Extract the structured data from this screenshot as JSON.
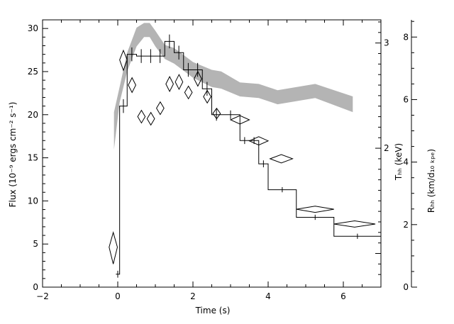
{
  "chart_data": {
    "type": "line",
    "xlabel": "Time (s)",
    "ylabel_left": "Flux (10⁻⁹ ergs cm⁻² s⁻¹)",
    "ylabel_right_inner": "Tₕₕ (keV)",
    "ylabel_right_outer": "Rₕₕ (km/d₁₀ ₖₚₑ)",
    "xlim": [
      -2,
      7
    ],
    "ylim_flux": [
      0,
      31
    ],
    "x_ticks": [
      "−2",
      "0",
      "2",
      "4",
      "6"
    ],
    "y_ticks_flux": [
      "0",
      "5",
      "10",
      "15",
      "20",
      "25",
      "30"
    ],
    "kT_ticks": [
      "2",
      "3"
    ],
    "R_ticks": [
      "0",
      "2",
      "4",
      "6",
      "8"
    ],
    "kT_scale": {
      "kT_at_axis_bottom": 0.68,
      "kT_at_axis_top": 3.22
    },
    "R_scale": {
      "R_at_axis_bottom": 0.0,
      "R_at_axis_top": 8.55
    },
    "series": [
      {
        "style": "histogram",
        "bins": [
          {
            "x0": -0.05,
            "x1": 0.05,
            "y": 1.5,
            "err": 0.4
          },
          {
            "x0": 0.05,
            "x1": 0.25,
            "y": 21.0,
            "err": 0.8
          },
          {
            "x0": 0.25,
            "x1": 0.5,
            "y": 27.0,
            "err": 0.8
          },
          {
            "x0": 0.5,
            "x1": 0.75,
            "y": 26.8,
            "err": 0.8
          },
          {
            "x0": 0.75,
            "x1": 1.0,
            "y": 26.8,
            "err": 0.8
          },
          {
            "x0": 1.0,
            "x1": 1.25,
            "y": 26.8,
            "err": 0.8
          },
          {
            "x0": 1.25,
            "x1": 1.5,
            "y": 28.5,
            "err": 0.8
          },
          {
            "x0": 1.5,
            "x1": 1.75,
            "y": 27.2,
            "err": 0.8
          },
          {
            "x0": 1.75,
            "x1": 2.0,
            "y": 25.2,
            "err": 0.8
          },
          {
            "x0": 2.0,
            "x1": 2.25,
            "y": 25.2,
            "err": 0.8
          },
          {
            "x0": 2.25,
            "x1": 2.5,
            "y": 23.0,
            "err": 0.8
          },
          {
            "x0": 2.5,
            "x1": 2.75,
            "y": 20.0,
            "err": 0.7
          },
          {
            "x0": 2.75,
            "x1": 3.25,
            "y": 20.0,
            "err": 0.5
          },
          {
            "x0": 3.25,
            "x1": 3.5,
            "y": 17.0,
            "err": 0.4
          },
          {
            "x0": 3.5,
            "x1": 3.75,
            "y": 17.0,
            "err": 0.4
          },
          {
            "x0": 3.75,
            "x1": 4.0,
            "y": 14.3,
            "err": 0.4
          },
          {
            "x0": 4.0,
            "x1": 4.75,
            "y": 11.3,
            "err": 0.3
          },
          {
            "x0": 4.75,
            "x1": 5.75,
            "y": 8.1,
            "err": 0.3
          },
          {
            "x0": 5.75,
            "x1": 7.0,
            "y": 5.9,
            "err": 0.3
          }
        ]
      },
      {
        "style": "diamond",
        "points": [
          {
            "t": -0.12,
            "t_lo": -0.23,
            "t_hi": -0.01,
            "kT": 1.06,
            "kT_lo": 0.9,
            "kT_hi": 1.2
          },
          {
            "t": 0.15,
            "t_lo": 0.05,
            "t_hi": 0.25,
            "kT": 2.84,
            "kT_lo": 2.74,
            "kT_hi": 2.93
          },
          {
            "t": 0.38,
            "t_lo": 0.28,
            "t_hi": 0.48,
            "kT": 2.6,
            "kT_lo": 2.53,
            "kT_hi": 2.67
          },
          {
            "t": 0.63,
            "t_lo": 0.53,
            "t_hi": 0.73,
            "kT": 2.3,
            "kT_lo": 2.24,
            "kT_hi": 2.36
          },
          {
            "t": 0.88,
            "t_lo": 0.78,
            "t_hi": 0.98,
            "kT": 2.28,
            "kT_lo": 2.22,
            "kT_hi": 2.34
          },
          {
            "t": 1.13,
            "t_lo": 1.03,
            "t_hi": 1.23,
            "kT": 2.38,
            "kT_lo": 2.32,
            "kT_hi": 2.44
          },
          {
            "t": 1.38,
            "t_lo": 1.28,
            "t_hi": 1.48,
            "kT": 2.61,
            "kT_lo": 2.54,
            "kT_hi": 2.68
          },
          {
            "t": 1.63,
            "t_lo": 1.53,
            "t_hi": 1.73,
            "kT": 2.63,
            "kT_lo": 2.56,
            "kT_hi": 2.7
          },
          {
            "t": 1.88,
            "t_lo": 1.78,
            "t_hi": 1.98,
            "kT": 2.53,
            "kT_lo": 2.47,
            "kT_hi": 2.59
          },
          {
            "t": 2.13,
            "t_lo": 2.03,
            "t_hi": 2.23,
            "kT": 2.66,
            "kT_lo": 2.59,
            "kT_hi": 2.73
          },
          {
            "t": 2.38,
            "t_lo": 2.28,
            "t_hi": 2.48,
            "kT": 2.49,
            "kT_lo": 2.43,
            "kT_hi": 2.55
          },
          {
            "t": 2.63,
            "t_lo": 2.53,
            "t_hi": 2.73,
            "kT": 2.33,
            "kT_lo": 2.28,
            "kT_hi": 2.38
          },
          {
            "t": 3.25,
            "t_lo": 3.0,
            "t_hi": 3.5,
            "kT": 2.27,
            "kT_lo": 2.23,
            "kT_hi": 2.31
          },
          {
            "t": 3.75,
            "t_lo": 3.5,
            "t_hi": 4.0,
            "kT": 2.07,
            "kT_lo": 2.03,
            "kT_hi": 2.11
          },
          {
            "t": 4.35,
            "t_lo": 4.05,
            "t_hi": 4.65,
            "kT": 1.9,
            "kT_lo": 1.86,
            "kT_hi": 1.94
          },
          {
            "t": 5.25,
            "t_lo": 4.75,
            "t_hi": 5.75,
            "kT": 1.42,
            "kT_lo": 1.39,
            "kT_hi": 1.45
          },
          {
            "t": 6.3,
            "t_lo": 5.75,
            "t_hi": 6.85,
            "kT": 1.28,
            "kT_lo": 1.25,
            "kT_hi": 1.31
          }
        ]
      },
      {
        "style": "band",
        "color": "#b4b4b4",
        "t": [
          -0.1,
          0.05,
          0.25,
          0.5,
          0.7,
          0.85,
          1.0,
          1.25,
          1.5,
          2.0,
          2.5,
          2.75,
          3.25,
          3.75,
          4.25,
          5.25,
          6.25
        ],
        "R_lo": [
          4.4,
          5.9,
          6.9,
          7.7,
          8.0,
          8.0,
          7.7,
          7.3,
          7.15,
          6.7,
          6.4,
          6.35,
          6.1,
          6.05,
          5.85,
          6.05,
          5.6
        ],
        "R_hi": [
          5.6,
          6.4,
          7.5,
          8.3,
          8.45,
          8.45,
          8.2,
          7.75,
          7.65,
          7.2,
          6.95,
          6.9,
          6.55,
          6.5,
          6.3,
          6.5,
          6.1
        ]
      }
    ]
  }
}
